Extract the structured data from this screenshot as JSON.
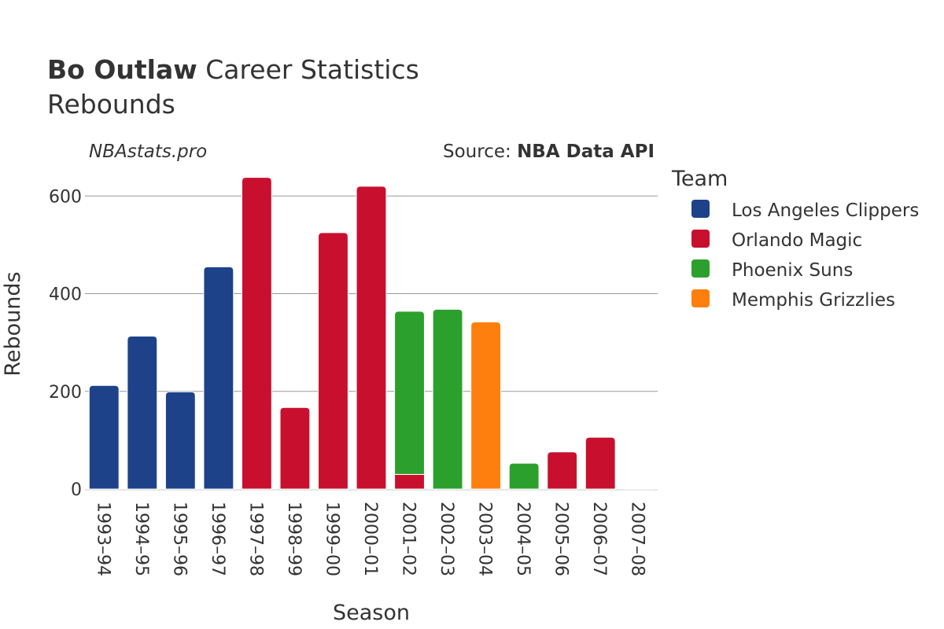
{
  "header": {
    "player_name": "Bo Outlaw",
    "title_rest": " Career Statistics",
    "subtitle": "Rebounds",
    "watermark": "NBAstats.pro",
    "source_prefix": "Source: ",
    "source_name": "NBA Data API"
  },
  "legend": {
    "title": "Team"
  },
  "chart_data": {
    "type": "bar",
    "stacked": true,
    "xlabel": "Season",
    "ylabel": "Rebounds",
    "ylim": [
      0,
      660
    ],
    "yticks": [
      0,
      200,
      400,
      600
    ],
    "grid": true,
    "legend_position": "right",
    "categories": [
      "1993–94",
      "1994–95",
      "1995–96",
      "1996–97",
      "1997–98",
      "1998–99",
      "1999–00",
      "2000–01",
      "2001–02",
      "2002–03",
      "2003–04",
      "2004–05",
      "2005–06",
      "2006–07",
      "2007–08"
    ],
    "series": [
      {
        "name": "Los Angeles Clippers",
        "color": "#1d428a",
        "values": [
          212,
          313,
          199,
          455,
          0,
          0,
          0,
          0,
          0,
          0,
          0,
          0,
          0,
          0,
          0
        ]
      },
      {
        "name": "Orlando Magic",
        "color": "#c8102e",
        "values": [
          0,
          0,
          0,
          0,
          638,
          167,
          525,
          620,
          30,
          0,
          0,
          0,
          76,
          106,
          1
        ]
      },
      {
        "name": "Phoenix Suns",
        "color": "#2ca02c",
        "values": [
          0,
          0,
          0,
          0,
          0,
          0,
          0,
          0,
          334,
          368,
          0,
          53,
          0,
          0,
          0
        ]
      },
      {
        "name": "Memphis Grizzlies",
        "color": "#ff7f0e",
        "values": [
          0,
          0,
          0,
          0,
          0,
          0,
          0,
          0,
          0,
          0,
          342,
          0,
          0,
          0,
          0
        ]
      }
    ]
  }
}
